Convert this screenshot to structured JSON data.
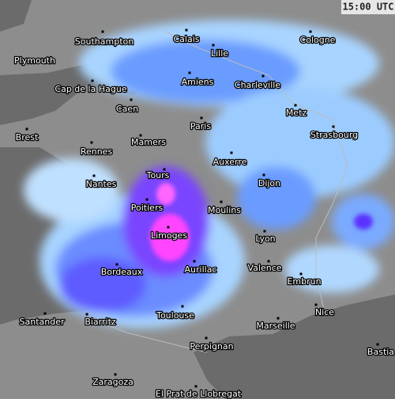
{
  "time_label": "15:00 UTC",
  "cities": [
    {
      "name": "Southampton"
    },
    {
      "name": "Plymouth"
    },
    {
      "name": "Calais"
    },
    {
      "name": "Lille"
    },
    {
      "name": "Cologne"
    },
    {
      "name": "Amiens"
    },
    {
      "name": "Charleville"
    },
    {
      "name": "Cap de la Hague"
    },
    {
      "name": "Caen"
    },
    {
      "name": "Metz"
    },
    {
      "name": "Paris"
    },
    {
      "name": "Brest"
    },
    {
      "name": "Strasbourg"
    },
    {
      "name": "Mamers"
    },
    {
      "name": "Rennes"
    },
    {
      "name": "Auxerre"
    },
    {
      "name": "Tours"
    },
    {
      "name": "Nantes"
    },
    {
      "name": "Dijon"
    },
    {
      "name": "Poitiers"
    },
    {
      "name": "Moulins"
    },
    {
      "name": "Limoges"
    },
    {
      "name": "Lyon"
    },
    {
      "name": "Valence"
    },
    {
      "name": "Aurillac"
    },
    {
      "name": "Bordeaux"
    },
    {
      "name": "Embrun"
    },
    {
      "name": "Nice"
    },
    {
      "name": "Toulouse"
    },
    {
      "name": "Santander"
    },
    {
      "name": "Biarritz"
    },
    {
      "name": "Marseille"
    },
    {
      "name": "Bastia"
    },
    {
      "name": "Perpignan"
    },
    {
      "name": "Zaragoza"
    },
    {
      "name": "El Prat de Llobregat"
    }
  ]
}
